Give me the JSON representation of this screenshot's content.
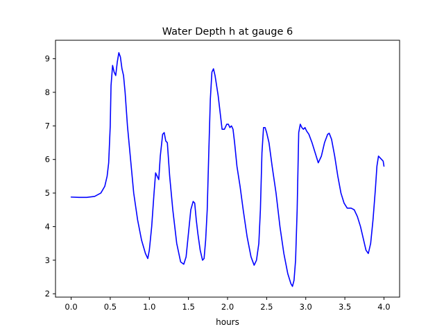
{
  "chart_data": {
    "type": "line",
    "title": "Water Depth h at gauge 6",
    "xlabel": "hours",
    "ylabel": "",
    "xlim": [
      -0.2,
      4.2
    ],
    "ylim": [
      1.9,
      9.55
    ],
    "x_ticks": [
      0.0,
      0.5,
      1.0,
      1.5,
      2.0,
      2.5,
      3.0,
      3.5,
      4.0
    ],
    "x_tick_labels": [
      "0.0",
      "0.5",
      "1.0",
      "1.5",
      "2.0",
      "2.5",
      "3.0",
      "3.5",
      "4.0"
    ],
    "y_ticks": [
      2,
      3,
      4,
      5,
      6,
      7,
      8,
      9
    ],
    "y_tick_labels": [
      "2",
      "3",
      "4",
      "5",
      "6",
      "7",
      "8",
      "9"
    ],
    "grid": false,
    "legend": "none",
    "series": [
      {
        "color": "#0000ff",
        "x": [
          0.0,
          0.1,
          0.2,
          0.3,
          0.38,
          0.43,
          0.46,
          0.48,
          0.5,
          0.51,
          0.53,
          0.55,
          0.57,
          0.59,
          0.61,
          0.63,
          0.65,
          0.67,
          0.69,
          0.72,
          0.76,
          0.8,
          0.85,
          0.9,
          0.95,
          0.98,
          1.0,
          1.03,
          1.06,
          1.08,
          1.1,
          1.12,
          1.14,
          1.17,
          1.19,
          1.21,
          1.23,
          1.26,
          1.3,
          1.35,
          1.4,
          1.44,
          1.47,
          1.5,
          1.53,
          1.56,
          1.58,
          1.6,
          1.62,
          1.65,
          1.68,
          1.7,
          1.72,
          1.74,
          1.76,
          1.78,
          1.8,
          1.82,
          1.84,
          1.86,
          1.88,
          1.9,
          1.93,
          1.96,
          1.99,
          2.01,
          2.03,
          2.05,
          2.07,
          2.09,
          2.12,
          2.16,
          2.2,
          2.25,
          2.3,
          2.34,
          2.37,
          2.4,
          2.42,
          2.44,
          2.46,
          2.48,
          2.5,
          2.53,
          2.57,
          2.62,
          2.67,
          2.72,
          2.77,
          2.81,
          2.83,
          2.85,
          2.87,
          2.89,
          2.91,
          2.93,
          2.95,
          2.97,
          2.99,
          3.01,
          3.04,
          3.08,
          3.12,
          3.16,
          3.2,
          3.24,
          3.28,
          3.3,
          3.33,
          3.37,
          3.41,
          3.45,
          3.49,
          3.53,
          3.58,
          3.62,
          3.66,
          3.7,
          3.74,
          3.77,
          3.8,
          3.83,
          3.86,
          3.89,
          3.91,
          3.93,
          3.95,
          3.97,
          3.99,
          4.0
        ],
        "y": [
          4.88,
          4.87,
          4.87,
          4.9,
          5.0,
          5.2,
          5.5,
          5.9,
          7.0,
          8.2,
          8.8,
          8.6,
          8.5,
          8.9,
          9.18,
          9.05,
          8.7,
          8.5,
          8.0,
          7.0,
          6.0,
          5.0,
          4.2,
          3.6,
          3.2,
          3.05,
          3.3,
          4.0,
          5.0,
          5.6,
          5.5,
          5.4,
          6.1,
          6.75,
          6.8,
          6.55,
          6.5,
          5.5,
          4.5,
          3.5,
          2.95,
          2.88,
          3.1,
          3.8,
          4.5,
          4.75,
          4.7,
          4.2,
          3.8,
          3.3,
          3.0,
          3.05,
          3.6,
          4.5,
          6.2,
          7.8,
          8.6,
          8.7,
          8.5,
          8.2,
          7.9,
          7.5,
          6.9,
          6.9,
          7.05,
          7.05,
          6.95,
          7.0,
          6.9,
          6.5,
          5.8,
          5.2,
          4.5,
          3.7,
          3.1,
          2.85,
          3.0,
          3.5,
          4.5,
          6.2,
          6.95,
          6.95,
          6.8,
          6.5,
          5.8,
          5.0,
          4.0,
          3.2,
          2.6,
          2.3,
          2.22,
          2.4,
          3.0,
          4.5,
          6.8,
          7.05,
          6.95,
          6.9,
          6.95,
          6.85,
          6.75,
          6.5,
          6.2,
          5.9,
          6.1,
          6.5,
          6.75,
          6.78,
          6.6,
          6.1,
          5.5,
          5.0,
          4.7,
          4.55,
          4.55,
          4.5,
          4.3,
          4.0,
          3.6,
          3.3,
          3.2,
          3.5,
          4.2,
          5.1,
          5.8,
          6.1,
          6.05,
          6.0,
          5.95,
          5.8
        ]
      }
    ]
  }
}
